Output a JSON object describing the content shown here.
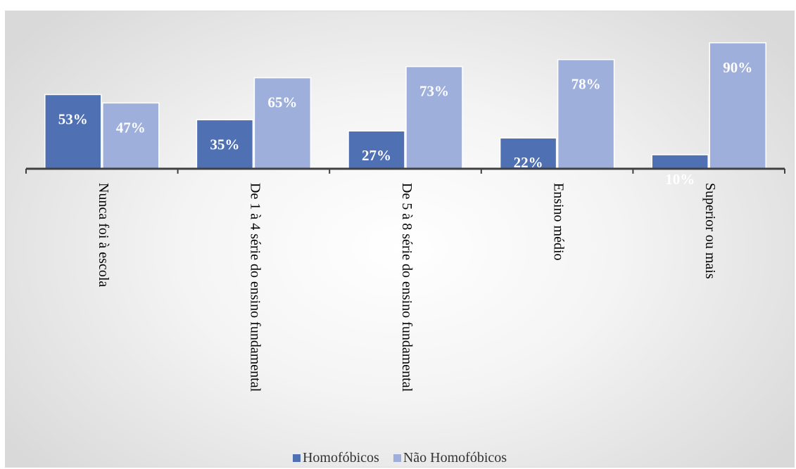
{
  "chart_data": {
    "type": "bar",
    "categories": [
      "Nunca foi à escola",
      "De 1 à 4 série do ensino fundamental",
      "De 5 à 8 série do ensino fundamental",
      "Ensino médio",
      "Superior ou mais"
    ],
    "series": [
      {
        "name": "Homofóbicos",
        "color": "#4f71b3",
        "values": [
          53,
          35,
          27,
          22,
          10
        ],
        "labels": [
          "53%",
          "35%",
          "27%",
          "22%",
          "10%"
        ]
      },
      {
        "name": "Não Homofóbicos",
        "color": "#9eafdb",
        "values": [
          47,
          65,
          73,
          78,
          90
        ],
        "labels": [
          "47%",
          "65%",
          "73%",
          "78%",
          "90%"
        ]
      }
    ],
    "ylim": [
      0,
      100
    ],
    "grid": false,
    "legend_position": "bottom",
    "title": "",
    "xlabel": "",
    "ylabel": ""
  }
}
